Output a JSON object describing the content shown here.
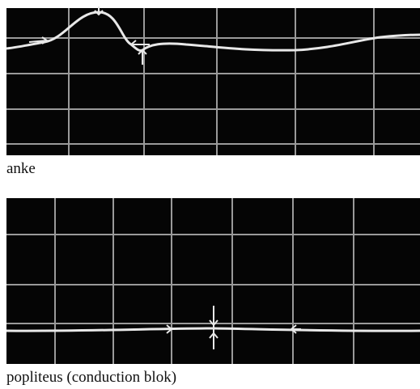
{
  "panels": [
    {
      "caption": "anke"
    },
    {
      "caption": "popliteus (conduction blok)"
    }
  ]
}
